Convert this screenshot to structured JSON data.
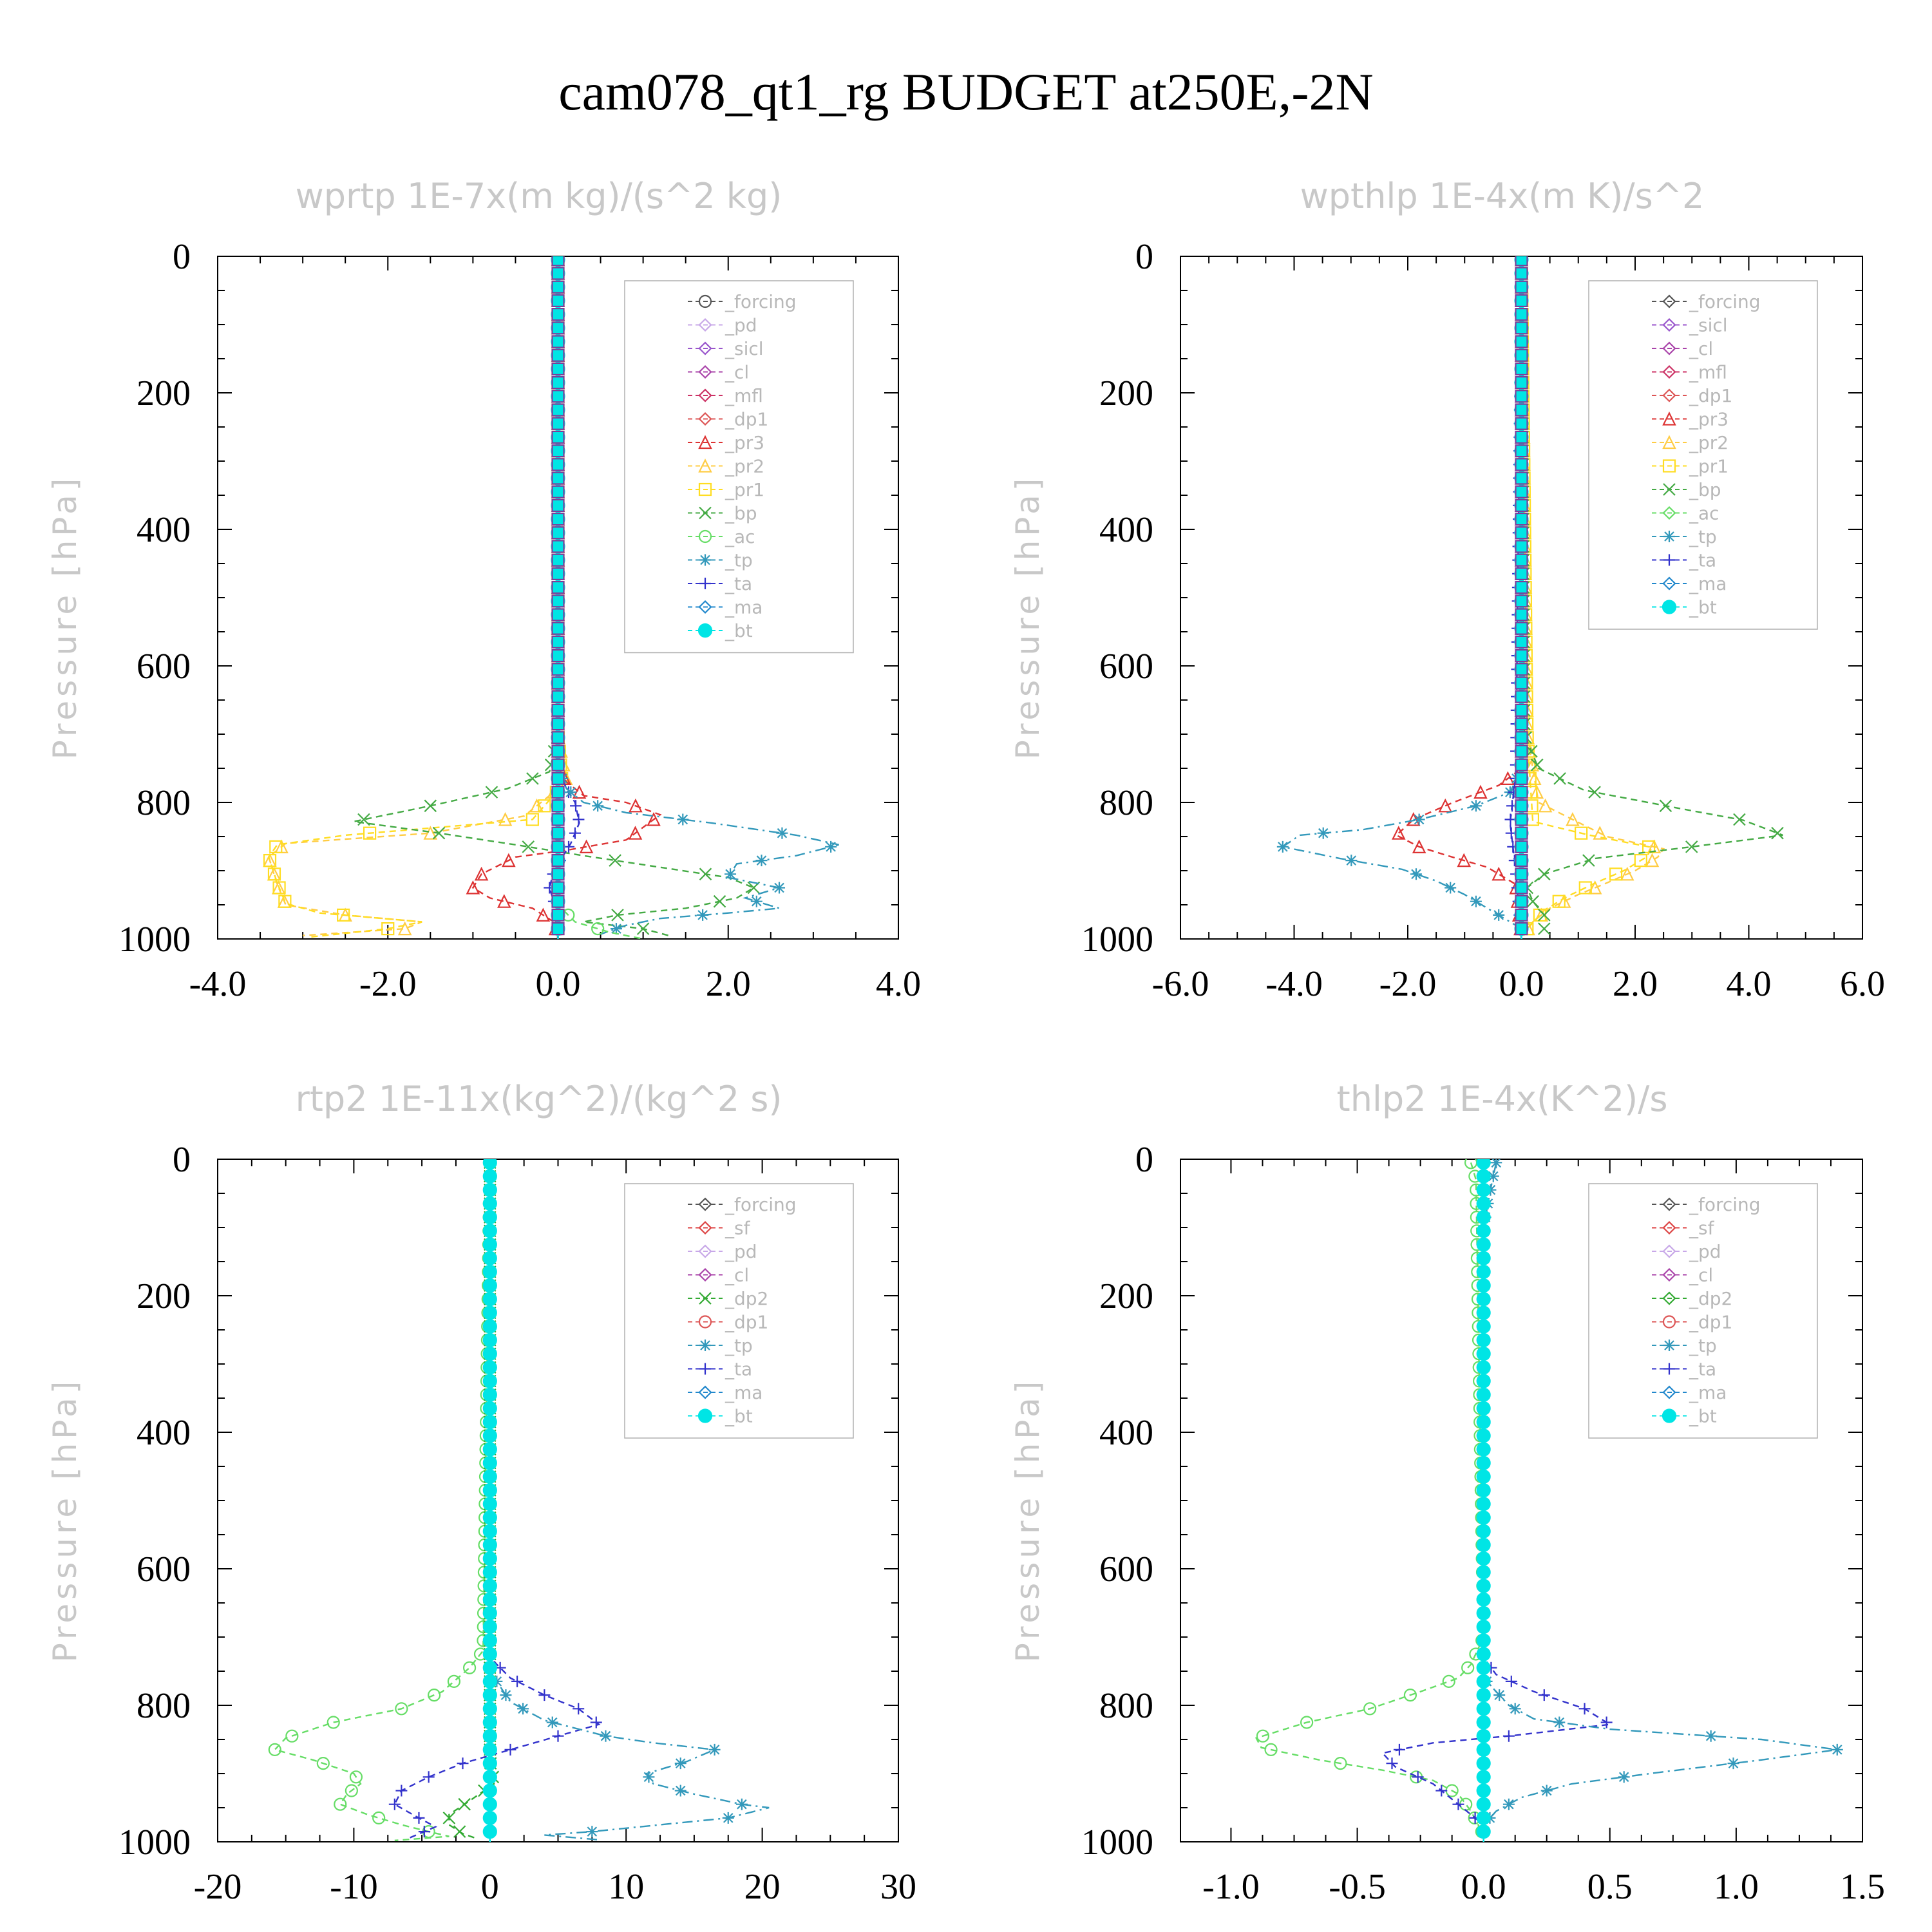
{
  "title": "cam078_qt1_rg  BUDGET at250E,-2N",
  "colors": {
    "forcing": "#555555",
    "pd": "#c8a8e8",
    "sicl": "#9955cc",
    "cl": "#aa44aa",
    "mfl": "#cc3366",
    "dp1": "#dd5555",
    "pr3": "#dd3333",
    "pr2": "#ffcc44",
    "pr1": "#ffdd22",
    "bp": "#44aa44",
    "ac": "#66dd66",
    "tp": "#3399bb",
    "ta": "#3333cc",
    "ma": "#2288cc",
    "bt": "#00e5e5",
    "sf": "#dd4444",
    "dp2": "#33aa33"
  },
  "chart_data": [
    {
      "type": "line",
      "title": "wprtp   1E-7x(m kg)/(s^2 kg)",
      "ylabel": "Pressure [hPa]",
      "xlim": [
        -4,
        4
      ],
      "ylim": [
        1000,
        0
      ],
      "xticks": [
        "-4.0",
        "-2.0",
        "0.0",
        "2.0",
        "4.0"
      ],
      "xtick_values": [
        -4,
        -2,
        0,
        2,
        4
      ],
      "yticks": [
        "0",
        "200",
        "400",
        "600",
        "800",
        "1000"
      ],
      "ytick_values": [
        0,
        200,
        400,
        600,
        800,
        1000
      ],
      "legend_position": "top-right",
      "legend": [
        "_forcing",
        "_pd",
        "_sicl",
        "_cl",
        "_mfl",
        "_dp1",
        "_pr3",
        "_pr2",
        "_pr1",
        "_bp",
        "_ac",
        "_tp",
        "_ta",
        "_ma",
        "_bt"
      ],
      "series": [
        {
          "name": "_forcing",
          "color": "#555555",
          "marker": "circle",
          "style": "dash",
          "x": [
            0,
            0,
            0,
            0,
            0,
            0,
            0,
            0,
            0,
            0
          ],
          "y": [
            0,
            100,
            200,
            300,
            400,
            500,
            600,
            700,
            800,
            1000
          ]
        },
        {
          "name": "_pr2",
          "color": "#ffcc44",
          "marker": "triangle",
          "style": "dash",
          "x": [
            0,
            0,
            0.1,
            -0.4,
            -1.5,
            -3.2,
            -3.4,
            -3.3,
            -3.2,
            -2.5,
            -1.6,
            -1.8,
            -3.0
          ],
          "y": [
            0,
            700,
            770,
            820,
            845,
            860,
            880,
            920,
            950,
            965,
            975,
            985,
            995
          ]
        },
        {
          "name": "_pr1",
          "color": "#ffdd22",
          "marker": "square",
          "style": "dash",
          "x": [
            0,
            0,
            0.05,
            -0.3,
            -2.5,
            -3.3,
            -3.4,
            -3.3,
            -3.2,
            -2.8,
            -1.6,
            -2.0,
            -2.9
          ],
          "y": [
            0,
            700,
            775,
            825,
            848,
            862,
            880,
            918,
            948,
            962,
            975,
            985,
            997
          ]
        },
        {
          "name": "_bp",
          "color": "#44aa44",
          "marker": "x",
          "style": "dash",
          "x": [
            0,
            0,
            -0.1,
            -0.6,
            -1.5,
            -2.4,
            -1.4,
            -0.5,
            0.3,
            1.2,
            2.0,
            2.3,
            2.1,
            1.5,
            0.7,
            0.3,
            1.0,
            1.3
          ],
          "y": [
            0,
            700,
            755,
            780,
            805,
            828,
            845,
            862,
            878,
            895,
            910,
            925,
            940,
            955,
            965,
            975,
            985,
            995
          ]
        },
        {
          "name": "_pr3",
          "color": "#dd3333",
          "marker": "triangle",
          "style": "dash",
          "x": [
            0,
            0,
            0.1,
            0.3,
            0.8,
            1.2,
            0.8,
            0.1,
            -0.5,
            -0.9,
            -1.0,
            -0.8,
            -0.3,
            -0.05,
            0
          ],
          "y": [
            0,
            750,
            770,
            790,
            800,
            818,
            855,
            870,
            880,
            905,
            925,
            940,
            955,
            975,
            1000
          ]
        },
        {
          "name": "_ta",
          "color": "#3333cc",
          "marker": "plus",
          "style": "dash",
          "x": [
            0,
            0,
            0.1,
            0.2,
            0.25,
            0.15,
            0.05,
            -0.05,
            -0.1,
            -0.05,
            0,
            0
          ],
          "y": [
            0,
            750,
            780,
            800,
            830,
            860,
            880,
            900,
            925,
            945,
            960,
            1000
          ]
        },
        {
          "name": "_tp",
          "color": "#3399bb",
          "marker": "star",
          "style": "dashdot",
          "x": [
            0,
            0,
            0.1,
            0.3,
            0.8,
            1.8,
            2.8,
            3.3,
            2.8,
            2.1,
            2.0,
            2.6,
            2.2,
            2.6,
            2.0,
            1.2,
            0.8,
            0.5
          ],
          "y": [
            0,
            750,
            780,
            800,
            815,
            830,
            848,
            862,
            878,
            890,
            910,
            925,
            940,
            955,
            962,
            970,
            980,
            993
          ]
        },
        {
          "name": "_ac",
          "color": "#66dd66",
          "marker": "circle",
          "style": "dash",
          "x": [
            0,
            0,
            0.2,
            0.6,
            1.0
          ],
          "y": [
            0,
            950,
            975,
            990,
            1000
          ]
        },
        {
          "name": "_bt",
          "color": "#00e5e5",
          "marker": "filled",
          "style": "solid",
          "x": [
            0,
            0
          ],
          "y": [
            0,
            1000
          ]
        }
      ]
    },
    {
      "type": "line",
      "title": "wpthlp   1E-4x(m K)/s^2",
      "ylabel": "Pressure [hPa]",
      "xlim": [
        -6,
        6
      ],
      "ylim": [
        1000,
        0
      ],
      "xticks": [
        "-6.0",
        "-4.0",
        "-2.0",
        "0.0",
        "2.0",
        "4.0",
        "6.0"
      ],
      "xtick_values": [
        -6,
        -4,
        -2,
        0,
        2,
        4,
        6
      ],
      "yticks": [
        "0",
        "200",
        "400",
        "600",
        "800",
        "1000"
      ],
      "ytick_values": [
        0,
        200,
        400,
        600,
        800,
        1000
      ],
      "legend_position": "top-right",
      "legend": [
        "_forcing",
        "_sicl",
        "_cl",
        "_mfl",
        "_dp1",
        "_pr3",
        "_pr2",
        "_pr1",
        "_bp",
        "_ac",
        "_tp",
        "_ta",
        "_ma",
        "_bt"
      ],
      "series": [
        {
          "name": "_forcing",
          "color": "#c8a8e8",
          "marker": "diamond",
          "style": "dash",
          "x": [
            0,
            0
          ],
          "y": [
            0,
            1000
          ]
        },
        {
          "name": "_pr3",
          "color": "#dd3333",
          "marker": "triangle",
          "style": "dash",
          "x": [
            0,
            0,
            -0.4,
            -1.2,
            -1.9,
            -2.2,
            -1.8,
            -1.3,
            -0.6,
            -0.1,
            0
          ],
          "y": [
            0,
            750,
            775,
            800,
            825,
            848,
            865,
            878,
            895,
            920,
            1000
          ]
        },
        {
          "name": "_pr2",
          "color": "#ffcc44",
          "marker": "triangle",
          "style": "dash",
          "x": [
            0,
            0.1,
            0.3,
            1.5,
            2.5,
            2.4,
            2.0,
            1.5,
            1.0,
            0.5,
            0.2,
            0
          ],
          "y": [
            0,
            700,
            800,
            850,
            868,
            880,
            900,
            918,
            935,
            955,
            975,
            1000
          ]
        },
        {
          "name": "_pr1",
          "color": "#ffdd22",
          "marker": "square",
          "style": "dash",
          "x": [
            0,
            0.1,
            0.2,
            1.2,
            2.3,
            2.2,
            1.8,
            1.3,
            0.8,
            0.4,
            0.1
          ],
          "y": [
            0,
            700,
            828,
            848,
            866,
            880,
            900,
            918,
            938,
            958,
            985
          ]
        },
        {
          "name": "_bp",
          "color": "#44aa44",
          "marker": "x",
          "style": "dash",
          "x": [
            0,
            0.05,
            0.3,
            1.1,
            2.6,
            3.9,
            4.6,
            2.9,
            1.3,
            0.4,
            0.1,
            0.2,
            0.4
          ],
          "y": [
            0,
            700,
            750,
            782,
            806,
            826,
            848,
            866,
            882,
            905,
            925,
            945,
            965
          ]
        },
        {
          "name": "_tp",
          "color": "#3399bb",
          "marker": "star",
          "style": "dashdot",
          "x": [
            0,
            0,
            -0.2,
            -0.8,
            -1.8,
            -2.8,
            -3.9,
            -4.2,
            -3.2,
            -2.1,
            -1.5,
            -1.0,
            -0.6,
            -0.2,
            0.1
          ],
          "y": [
            0,
            750,
            785,
            805,
            825,
            840,
            848,
            865,
            882,
            898,
            915,
            935,
            955,
            975,
            990
          ]
        },
        {
          "name": "_ta",
          "color": "#3333cc",
          "marker": "plus",
          "style": "dash",
          "x": [
            0,
            -0.1,
            -0.2,
            -0.1,
            0
          ],
          "y": [
            0,
            760,
            830,
            900,
            1000
          ]
        },
        {
          "name": "_bt",
          "color": "#00e5e5",
          "marker": "filled",
          "style": "solid",
          "x": [
            0,
            0
          ],
          "y": [
            0,
            1000
          ]
        }
      ]
    },
    {
      "type": "line",
      "title": "rtp2   1E-11x(kg^2)/(kg^2 s)",
      "ylabel": "Pressure [hPa]",
      "xlim": [
        -20,
        30
      ],
      "ylim": [
        1000,
        0
      ],
      "xticks": [
        "-20",
        "-10",
        "0",
        "10",
        "20",
        "30"
      ],
      "xtick_values": [
        -20,
        -10,
        0,
        10,
        20,
        30
      ],
      "yticks": [
        "0",
        "200",
        "400",
        "600",
        "800",
        "1000"
      ],
      "ytick_values": [
        0,
        200,
        400,
        600,
        800,
        1000
      ],
      "legend_position": "top-right",
      "legend": [
        "_forcing",
        "_sf",
        "_pd",
        "_cl",
        "_dp2",
        "_dp1",
        "_tp",
        "_ta",
        "_ma",
        "_bt"
      ],
      "series": [
        {
          "name": "_forcing",
          "color": "#dd5555",
          "marker": "diamond",
          "style": "dash",
          "x": [
            0,
            0
          ],
          "y": [
            0,
            1000
          ]
        },
        {
          "name": "_dp1",
          "color": "#66dd66",
          "marker": "circle",
          "style": "dash",
          "x": [
            0,
            -0.5,
            -1.5,
            -3.5,
            -6.5,
            -11.5,
            -15.0,
            -15.8,
            -13.0,
            -10.0,
            -9.5,
            -10.5,
            -11.0,
            -9.0,
            -6.5,
            -4.5,
            -3.0,
            -7.0
          ],
          "y": [
            0,
            720,
            745,
            780,
            805,
            825,
            848,
            865,
            880,
            900,
            915,
            930,
            945,
            960,
            975,
            985,
            992,
            998
          ]
        },
        {
          "name": "_dp2",
          "color": "#33aa33",
          "marker": "x",
          "style": "dash",
          "x": [
            0,
            0,
            0.3,
            -1.5,
            -3.0,
            -3.0,
            -2.0,
            -1.0
          ],
          "y": [
            0,
            880,
            915,
            940,
            960,
            975,
            988,
            995
          ]
        },
        {
          "name": "_ta",
          "color": "#3333cc",
          "marker": "plus",
          "style": "dash",
          "x": [
            0,
            0,
            1.5,
            4.0,
            6.5,
            8.0,
            5.0,
            1.5,
            -2.0,
            -4.5,
            -6.5,
            -7.0,
            -5.5,
            -4.0,
            -6.0
          ],
          "y": [
            0,
            730,
            760,
            785,
            805,
            828,
            845,
            865,
            885,
            905,
            925,
            945,
            962,
            978,
            995
          ]
        },
        {
          "name": "_tp",
          "color": "#3399bb",
          "marker": "star",
          "style": "dashdot",
          "x": [
            0,
            0,
            1.5,
            4.0,
            8.5,
            12.0,
            16.5,
            14.5,
            11.5,
            12.0,
            15.0,
            18.5,
            20.5,
            17.5,
            12.5,
            7.5,
            4.0,
            8.0
          ],
          "y": [
            0,
            750,
            795,
            822,
            845,
            855,
            865,
            882,
            900,
            915,
            930,
            945,
            950,
            965,
            975,
            985,
            990,
            997
          ]
        },
        {
          "name": "_bt",
          "color": "#00e5e5",
          "marker": "filled",
          "style": "solid",
          "x": [
            0,
            0
          ],
          "y": [
            0,
            1000
          ]
        }
      ]
    },
    {
      "type": "line",
      "title": "thlp2   1E-4x(K^2)/s",
      "ylabel": "Pressure [hPa]",
      "xlim": [
        -1.2,
        1.5
      ],
      "ylim": [
        1000,
        0
      ],
      "xticks": [
        "-1.0",
        "-0.5",
        "0.0",
        "0.5",
        "1.0",
        "1.5"
      ],
      "xtick_values": [
        -1.0,
        -0.5,
        0.0,
        0.5,
        1.0,
        1.5
      ],
      "yticks": [
        "0",
        "200",
        "400",
        "600",
        "800",
        "1000"
      ],
      "ytick_values": [
        0,
        200,
        400,
        600,
        800,
        1000
      ],
      "legend_position": "top-right",
      "legend": [
        "_forcing",
        "_sf",
        "_pd",
        "_cl",
        "_dp2",
        "_dp1",
        "_tp",
        "_ta",
        "_ma",
        "_bt"
      ],
      "series": [
        {
          "name": "_forcing",
          "color": "#dd5555",
          "marker": "diamond",
          "style": "dash",
          "x": [
            0,
            0
          ],
          "y": [
            0,
            1000
          ]
        },
        {
          "name": "_dp1",
          "color": "#66dd66",
          "marker": "circle",
          "style": "dash",
          "x": [
            -0.05,
            -0.03,
            0,
            -0.05,
            -0.1,
            -0.25,
            -0.45,
            -0.7,
            -0.9,
            -0.88,
            -0.65,
            -0.4,
            -0.2,
            -0.1,
            -0.05,
            0
          ],
          "y": [
            5,
            30,
            700,
            740,
            760,
            780,
            805,
            825,
            848,
            862,
            880,
            895,
            910,
            930,
            955,
            990
          ]
        },
        {
          "name": "_ta",
          "color": "#3333cc",
          "marker": "plus",
          "style": "dash",
          "x": [
            0,
            0,
            0.05,
            0.2,
            0.4,
            0.5,
            0.1,
            -0.2,
            -0.4,
            -0.35,
            -0.2,
            -0.1,
            0
          ],
          "y": [
            0,
            730,
            755,
            780,
            805,
            828,
            845,
            855,
            870,
            890,
            915,
            945,
            975
          ]
        },
        {
          "name": "_tp",
          "color": "#3399bb",
          "marker": "star",
          "style": "dashdot",
          "x": [
            0.05,
            0.03,
            0,
            0,
            0.1,
            0.2,
            0.5,
            1.1,
            1.4,
            1.1,
            0.7,
            0.35,
            0.15,
            0.05,
            0
          ],
          "y": [
            5,
            40,
            100,
            760,
            800,
            820,
            835,
            850,
            865,
            880,
            898,
            915,
            935,
            955,
            975
          ]
        },
        {
          "name": "_bt",
          "color": "#00e5e5",
          "marker": "filled",
          "style": "solid",
          "x": [
            0,
            0
          ],
          "y": [
            0,
            1000
          ]
        }
      ]
    }
  ]
}
